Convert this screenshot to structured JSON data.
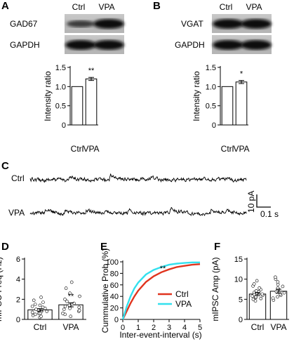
{
  "panels": {
    "A": "A",
    "B": "B",
    "C": "C",
    "D": "D",
    "E": "E",
    "F": "F"
  },
  "blots": {
    "A": {
      "col1": "Ctrl",
      "col2": "VPA",
      "band1": "GAD67",
      "band2": "GAPDH"
    },
    "B": {
      "col1": "Ctrl",
      "col2": "VPA",
      "band1": "VGAT",
      "band2": "GAPDH"
    }
  },
  "traces": {
    "ctrl_label": "Ctrl",
    "vpa_label": "VPA",
    "scale_y": "10 pA",
    "scale_x": "0.1 s"
  },
  "chart_data": [
    {
      "id": "A-bar",
      "type": "bar",
      "categories": [
        "Ctrl",
        "VPA"
      ],
      "values": [
        1.0,
        1.2
      ],
      "errors": [
        0,
        0.04
      ],
      "ylabel": "Intensity ratio",
      "ylim": [
        0,
        1.5
      ],
      "yticks": [
        "0",
        "0.5",
        "1.0",
        "1.5"
      ],
      "significance": "**"
    },
    {
      "id": "B-bar",
      "type": "bar",
      "categories": [
        "Ctrl",
        "VPA"
      ],
      "values": [
        1.0,
        1.12
      ],
      "errors": [
        0,
        0.04
      ],
      "ylabel": "Intensity ratio",
      "ylim": [
        0,
        1.5
      ],
      "yticks": [
        "0",
        "0.5",
        "1.0",
        "1.5"
      ],
      "significance": "*"
    },
    {
      "id": "D-bar",
      "type": "bar",
      "categories": [
        "Ctrl",
        "VPA"
      ],
      "values": [
        0.95,
        1.45
      ],
      "errors": [
        0.12,
        0.2
      ],
      "ylabel": "mIPSC Freq (Hz)",
      "ylim": [
        0,
        6
      ],
      "yticks": [
        "0",
        "2",
        "4",
        "6"
      ],
      "significance": "**",
      "points": {
        "Ctrl": [
          0.2,
          0.3,
          0.4,
          0.5,
          0.6,
          0.6,
          0.7,
          0.8,
          0.8,
          0.9,
          1.0,
          1.1,
          1.2,
          1.3,
          1.4,
          1.5,
          1.7,
          1.9,
          2.2
        ],
        "VPA": [
          0.3,
          0.5,
          0.6,
          0.8,
          0.9,
          1.0,
          1.1,
          1.2,
          1.3,
          1.4,
          1.5,
          1.6,
          1.8,
          2.0,
          2.3,
          2.6,
          3.1,
          3.7
        ]
      }
    },
    {
      "id": "E-line",
      "type": "line",
      "xlabel": "Inter-event-interval (s)",
      "ylabel": "Cummulative Prob (%)",
      "xlim": [
        0,
        5
      ],
      "ylim": [
        0,
        100
      ],
      "xticks": [
        "0",
        "1",
        "2",
        "3",
        "4",
        "5"
      ],
      "yticks": [
        "0",
        "20",
        "40",
        "60",
        "80",
        "100"
      ],
      "significance": "**",
      "legend": "bottom-right",
      "series": [
        {
          "name": "Ctrl",
          "color": "#e0341e",
          "x": [
            0,
            0.25,
            0.5,
            0.75,
            1,
            1.5,
            2,
            2.5,
            3,
            3.5,
            4,
            4.5,
            5
          ],
          "y": [
            0,
            14,
            28,
            40,
            50,
            65,
            75,
            82,
            87,
            91,
            93,
            95,
            96
          ]
        },
        {
          "name": "VPA",
          "color": "#33e0ee",
          "x": [
            0,
            0.25,
            0.5,
            0.75,
            1,
            1.5,
            2,
            2.5,
            3,
            3.5,
            4,
            4.5,
            5
          ],
          "y": [
            0,
            22,
            40,
            54,
            64,
            78,
            86,
            91,
            95,
            97,
            98,
            99,
            99
          ]
        }
      ]
    },
    {
      "id": "F-bar",
      "type": "bar",
      "categories": [
        "Ctrl",
        "VPA"
      ],
      "values": [
        6.3,
        7.0
      ],
      "errors": [
        0.4,
        0.5
      ],
      "ylabel": "mIPSC Amp (pA)",
      "ylim": [
        0,
        15
      ],
      "yticks": [
        "0",
        "5",
        "10",
        "15"
      ],
      "points": {
        "Ctrl": [
          4.6,
          5.0,
          5.2,
          5.4,
          5.6,
          5.8,
          6.0,
          6.2,
          6.3,
          6.5,
          6.7,
          6.9,
          7.1,
          7.4,
          7.8,
          8.3,
          8.8,
          9.6
        ],
        "VPA": [
          4.8,
          5.3,
          5.6,
          6.0,
          6.3,
          6.6,
          6.9,
          7.2,
          7.5,
          7.8,
          8.2,
          8.7,
          9.3,
          10.0,
          10.5
        ]
      }
    }
  ]
}
